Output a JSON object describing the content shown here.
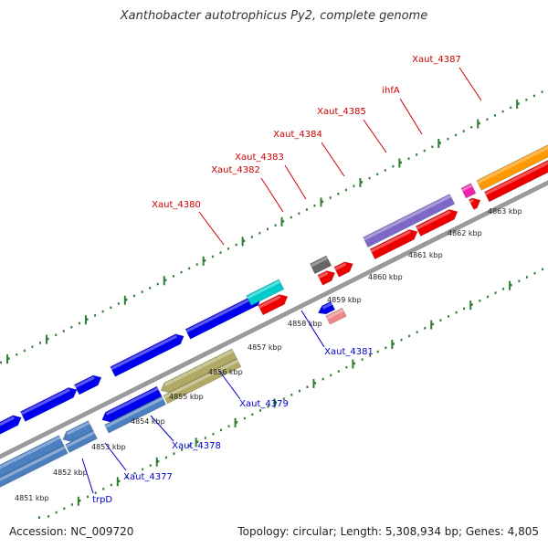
{
  "title": "Xanthobacter autotrophicus Py2, complete genome",
  "footer": {
    "accession": "Accession: NC_009720",
    "topology": "Topology: circular; Length: 5,308,934 bp; Genes: 4,805"
  },
  "colors": {
    "backbone": "#999999",
    "ruler": "#2e7d32",
    "forward_label": "#cc0000",
    "reverse_label": "#0000cc",
    "leader": "#cc0000",
    "leader_rev": "#0000cc"
  },
  "ticks": [
    {
      "label": "4851 kbp"
    },
    {
      "label": "4852 kbp"
    },
    {
      "label": "4853 kbp"
    },
    {
      "label": "4854 kbp"
    },
    {
      "label": "4855 kbp"
    },
    {
      "label": "4856 kbp"
    },
    {
      "label": "4857 kbp"
    },
    {
      "label": "4858 kbp"
    },
    {
      "label": "4859 kbp"
    },
    {
      "label": "4860 kbp"
    },
    {
      "label": "4861 kbp"
    },
    {
      "label": "4862 kbp"
    },
    {
      "label": "4863 kbp"
    }
  ],
  "forward_labels": [
    {
      "text": "Xaut_4380"
    },
    {
      "text": "Xaut_4382"
    },
    {
      "text": "Xaut_4383"
    },
    {
      "text": "Xaut_4384"
    },
    {
      "text": "Xaut_4385"
    },
    {
      "text": "ihfA"
    },
    {
      "text": "Xaut_4387"
    }
  ],
  "reverse_labels": [
    {
      "text": "trpD"
    },
    {
      "text": "Xaut_4377"
    },
    {
      "text": "Xaut_4378"
    },
    {
      "text": "Xaut_4379"
    },
    {
      "text": "Xaut_4381"
    }
  ]
}
